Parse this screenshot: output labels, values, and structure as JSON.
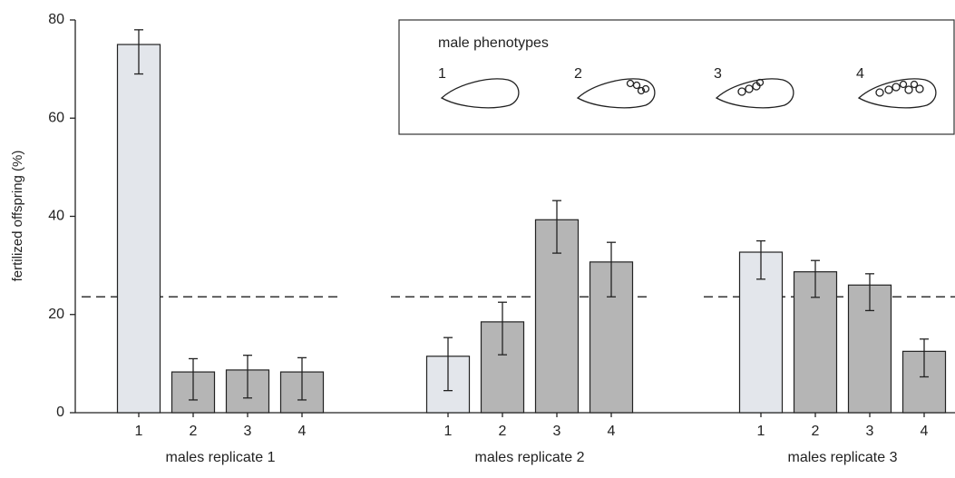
{
  "chart_data": {
    "type": "bar",
    "ylabel": "fertilized offspring (%)",
    "ylim": [
      0,
      80
    ],
    "yticks": [
      0,
      20,
      40,
      60,
      80
    ],
    "reference_line": 23.6,
    "colors": [
      "#e3e6eb",
      "#b5b5b5",
      "#b5b5b5",
      "#b5b5b5"
    ],
    "groups": [
      {
        "name": "males replicate 1",
        "categories": [
          "1",
          "2",
          "3",
          "4"
        ],
        "values": [
          75,
          8.3,
          8.7,
          8.3
        ],
        "err_minus": [
          6,
          5.7,
          5.7,
          5.7
        ],
        "err_plus": [
          3,
          2.7,
          3,
          2.9
        ]
      },
      {
        "name": "males replicate 2",
        "categories": [
          "1",
          "2",
          "3",
          "4"
        ],
        "values": [
          11.5,
          18.5,
          39.3,
          30.7
        ],
        "err_minus": [
          7,
          6.7,
          6.8,
          7.1
        ],
        "err_plus": [
          3.8,
          4,
          3.9,
          4
        ]
      },
      {
        "name": "males replicate 3",
        "categories": [
          "1",
          "2",
          "3",
          "4"
        ],
        "values": [
          32.7,
          28.7,
          26,
          12.5
        ],
        "err_minus": [
          5.5,
          5.2,
          5.2,
          5.2
        ],
        "err_plus": [
          2.3,
          2.3,
          2.3,
          2.5
        ]
      }
    ],
    "legend": {
      "title": "male phenotypes",
      "labels": [
        "1",
        "2",
        "3",
        "4"
      ]
    }
  }
}
